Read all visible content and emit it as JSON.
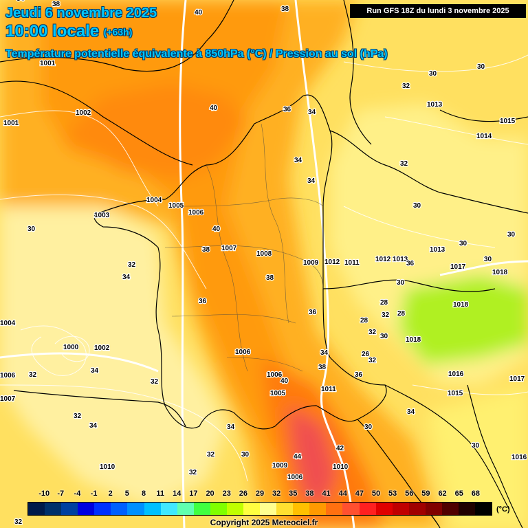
{
  "header": {
    "date_line": "Jeudi 6 novembre 2025",
    "time_line": "10:00 locale",
    "lead_time": "(+63h)",
    "product_title": "Température potentielle équivalente à 850hPa (°C) / Pression au sol (hPa)",
    "run_info": "Run GFS 18Z du lundi 3 novembre 2025"
  },
  "colors": {
    "sea_background": "#ffe878",
    "pale_yellow": "#fff8a0",
    "yellow": "#ffe030",
    "orange_light": "#ffc020",
    "orange": "#ff9a10",
    "orange_dark": "#ff7a10",
    "red": "#f05050",
    "green": "#b0f020",
    "title_blue": "#00c8ff"
  },
  "isobars_hpa": [
    "1001",
    "1002",
    "1001",
    "1004",
    "1003",
    "1005",
    "1006",
    "1007",
    "1008",
    "1009",
    "1012",
    "1011",
    "1012",
    "1013",
    "1017",
    "1018",
    "1018",
    "1014",
    "1015",
    "1013",
    "1016",
    "1017",
    "1015",
    "1010",
    "1009",
    "1006",
    "1006",
    "1005",
    "1006",
    "1011",
    "1000",
    "1002",
    "1004",
    "1006",
    "1007",
    "1010",
    "1013",
    "1016",
    "1018"
  ],
  "theta_labels": [
    "38",
    "40",
    "38",
    "34",
    "40",
    "36",
    "34",
    "34",
    "34",
    "30",
    "32",
    "30",
    "32",
    "30",
    "30",
    "40",
    "38",
    "32",
    "34",
    "32",
    "34",
    "36",
    "36",
    "38",
    "34",
    "32",
    "28",
    "28",
    "28",
    "32",
    "30",
    "36",
    "34",
    "30",
    "32",
    "26",
    "32",
    "40",
    "42",
    "44",
    "30",
    "32",
    "32",
    "32",
    "34",
    "34",
    "30",
    "32",
    "30",
    "36",
    "38",
    "30",
    "30",
    "30"
  ],
  "legend": {
    "unit": "(°C)",
    "ticks": [
      "-10",
      "-7",
      "-4",
      "-1",
      "2",
      "5",
      "8",
      "11",
      "14",
      "17",
      "20",
      "23",
      "26",
      "29",
      "32",
      "35",
      "38",
      "41",
      "44",
      "47",
      "50",
      "53",
      "56",
      "59",
      "62",
      "65",
      "68"
    ],
    "colors": [
      "#001a4a",
      "#00306a",
      "#0040a0",
      "#0000e0",
      "#0030ff",
      "#0060ff",
      "#0090ff",
      "#00c0ff",
      "#40e8ff",
      "#60ffb0",
      "#40ff40",
      "#80ff00",
      "#c0ff00",
      "#ffff40",
      "#ffff90",
      "#ffe030",
      "#ffc000",
      "#ff9a00",
      "#ff7010",
      "#ff5030",
      "#ff2020",
      "#e00000",
      "#c00000",
      "#a00000",
      "#800000",
      "#500000",
      "#200000",
      "#000000"
    ]
  },
  "copyright": "Copyright 2025 Meteociel.fr"
}
